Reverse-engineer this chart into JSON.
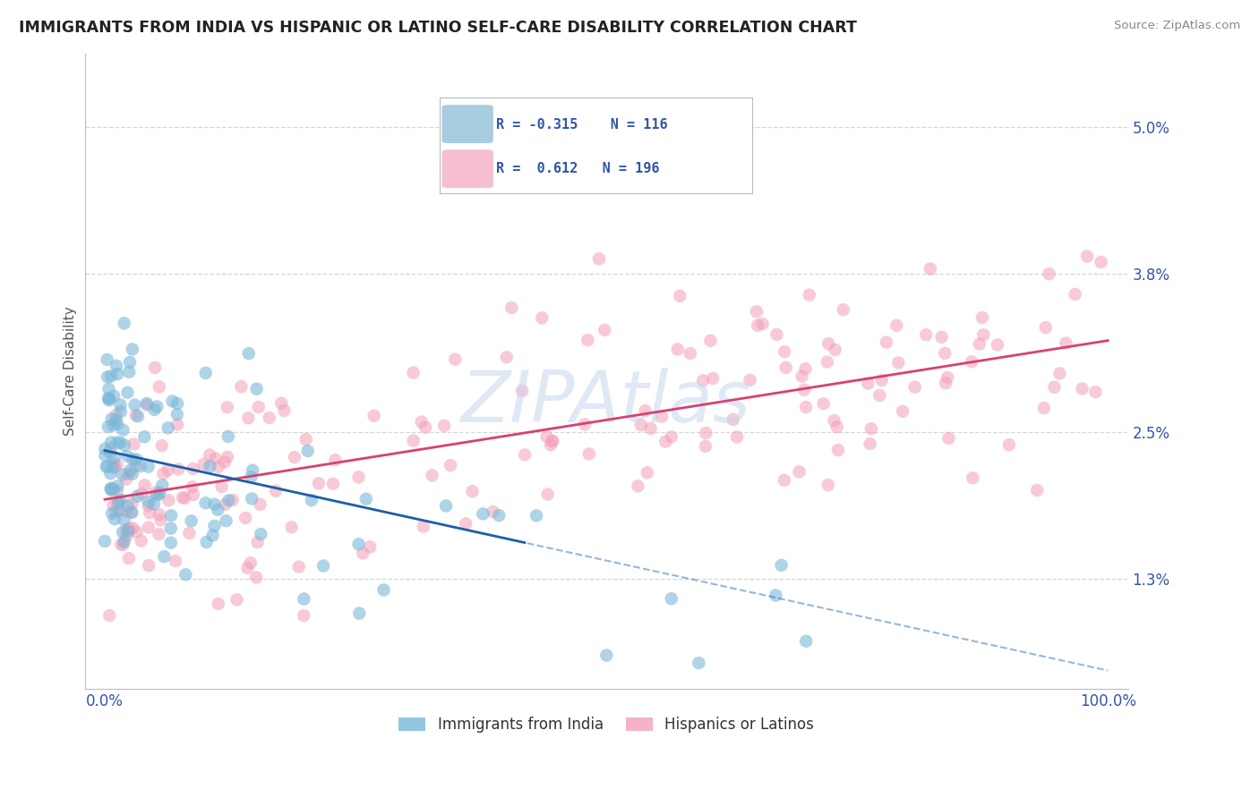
{
  "title": "IMMIGRANTS FROM INDIA VS HISPANIC OR LATINO SELF-CARE DISABILITY CORRELATION CHART",
  "source": "Source: ZipAtlas.com",
  "ylabel": "Self-Care Disability",
  "xlim": [
    -2,
    102
  ],
  "ylim": [
    0.4,
    5.6
  ],
  "yticks": [
    1.3,
    2.5,
    3.8,
    5.0
  ],
  "xtick_labels": [
    "0.0%",
    "100.0%"
  ],
  "ytick_labels": [
    "1.3%",
    "2.5%",
    "3.8%",
    "5.0%"
  ],
  "blue_color": "#7ab8d9",
  "pink_color": "#f4a0b8",
  "blue_line_color": "#1a5fa8",
  "pink_line_color": "#d94070",
  "legend_blue_color": "#a8cce0",
  "legend_pink_color": "#f5bfcf",
  "blue_R": -0.315,
  "blue_N": 116,
  "pink_R": 0.612,
  "pink_N": 196,
  "background_color": "#ffffff",
  "grid_color": "#cccccc",
  "title_color": "#222222",
  "tick_color": "#3355aa",
  "watermark_color": "#c5d8ee",
  "blue_scatter_seed": 12,
  "pink_scatter_seed": 99,
  "blue_line_intercept": 2.35,
  "blue_line_slope": -0.018,
  "pink_line_intercept": 1.95,
  "pink_line_slope": 0.013,
  "blue_solid_end": 42,
  "marker_size": 110
}
